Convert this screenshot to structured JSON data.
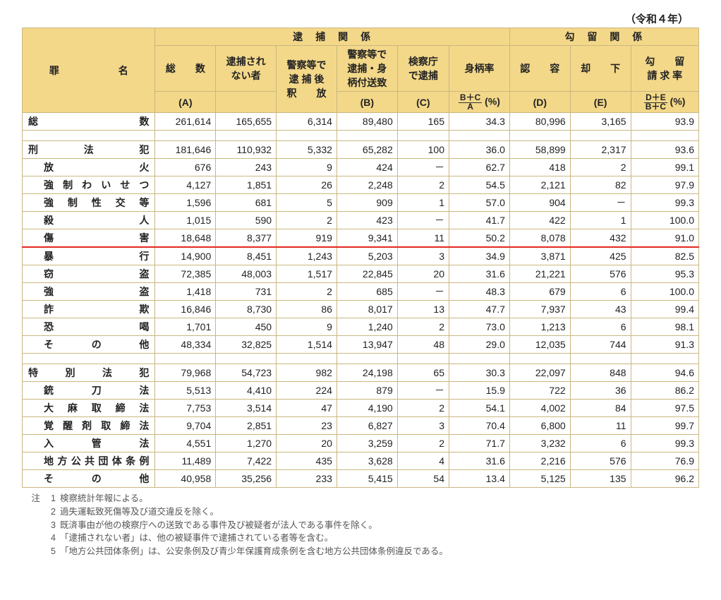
{
  "meta": {
    "year_label": "（令和４年）"
  },
  "header": {
    "group_arrest": "逮　捕　関　係",
    "group_detain": "勾　留　関　係",
    "rowname": "罪　　　　　　名",
    "colA": "総　　数",
    "colA_sub": "(A)",
    "col_not_arrested": "逮捕され\nない者",
    "col_release": "警察等で\n逮 捕 後\n釈　　放",
    "colB": "警察等で\n逮捕・身\n柄付送致",
    "colB_sub": "(B)",
    "colC": "検察庁\nで逮捕",
    "colC_sub": "(C)",
    "col_rate1": "身柄率",
    "col_rate1_formula_top": "B＋C",
    "col_rate1_formula_bot": "A",
    "col_rate1_pct": "(%)",
    "colD": "認　　容",
    "colD_sub": "(D)",
    "colE": "却　　下",
    "colE_sub": "(E)",
    "col_rate2": "勾　　留\n請 求 率",
    "col_rate2_formula_top": "D＋E",
    "col_rate2_formula_bot": "B＋C",
    "col_rate2_pct": "(%)"
  },
  "rows": [
    {
      "label": "総　　　　　　　　数",
      "bold": true,
      "indent": 0,
      "A": "261,614",
      "na": "165,655",
      "rel": "6,314",
      "B": "89,480",
      "C": "165",
      "r1": "34.3",
      "D": "80,996",
      "E": "3,165",
      "r2": "93.9",
      "after_spacer": true
    },
    {
      "label": "刑　　　法　　　犯",
      "bold": true,
      "indent": 0,
      "A": "181,646",
      "na": "110,932",
      "rel": "5,332",
      "B": "65,282",
      "C": "100",
      "r1": "36.0",
      "D": "58,899",
      "E": "2,317",
      "r2": "93.6"
    },
    {
      "label": "放　　　　　　　火",
      "indent": 1,
      "A": "676",
      "na": "243",
      "rel": "9",
      "B": "424",
      "C": "－",
      "r1": "62.7",
      "D": "418",
      "E": "2",
      "r2": "99.1"
    },
    {
      "label": "強 制 わ い せ つ",
      "indent": 1,
      "A": "4,127",
      "na": "1,851",
      "rel": "26",
      "B": "2,248",
      "C": "2",
      "r1": "54.5",
      "D": "2,121",
      "E": "82",
      "r2": "97.9"
    },
    {
      "label": "強　制　性　交　等",
      "indent": 1,
      "A": "1,596",
      "na": "681",
      "rel": "5",
      "B": "909",
      "C": "1",
      "r1": "57.0",
      "D": "904",
      "E": "－",
      "r2": "99.3"
    },
    {
      "label": "殺　　　　　　　人",
      "indent": 1,
      "A": "1,015",
      "na": "590",
      "rel": "2",
      "B": "423",
      "C": "－",
      "r1": "41.7",
      "D": "422",
      "E": "1",
      "r2": "100.0"
    },
    {
      "label": "傷　　　　　　　害",
      "indent": 1,
      "A": "18,648",
      "na": "8,377",
      "rel": "919",
      "B": "9,341",
      "C": "11",
      "r1": "50.2",
      "D": "8,078",
      "E": "432",
      "r2": "91.0",
      "redline": true
    },
    {
      "label": "暴　　　　　　　行",
      "indent": 1,
      "A": "14,900",
      "na": "8,451",
      "rel": "1,243",
      "B": "5,203",
      "C": "3",
      "r1": "34.9",
      "D": "3,871",
      "E": "425",
      "r2": "82.5"
    },
    {
      "label": "窃　　　　　　　盗",
      "indent": 1,
      "A": "72,385",
      "na": "48,003",
      "rel": "1,517",
      "B": "22,845",
      "C": "20",
      "r1": "31.6",
      "D": "21,221",
      "E": "576",
      "r2": "95.3"
    },
    {
      "label": "強　　　　　　　盗",
      "indent": 1,
      "A": "1,418",
      "na": "731",
      "rel": "2",
      "B": "685",
      "C": "－",
      "r1": "48.3",
      "D": "679",
      "E": "6",
      "r2": "100.0"
    },
    {
      "label": "詐　　　　　　　欺",
      "indent": 1,
      "A": "16,846",
      "na": "8,730",
      "rel": "86",
      "B": "8,017",
      "C": "13",
      "r1": "47.7",
      "D": "7,937",
      "E": "43",
      "r2": "99.4"
    },
    {
      "label": "恐　　　　　　　喝",
      "indent": 1,
      "A": "1,701",
      "na": "450",
      "rel": "9",
      "B": "1,240",
      "C": "2",
      "r1": "73.0",
      "D": "1,213",
      "E": "6",
      "r2": "98.1"
    },
    {
      "label": "そ　　　の　　　他",
      "indent": 1,
      "A": "48,334",
      "na": "32,825",
      "rel": "1,514",
      "B": "13,947",
      "C": "48",
      "r1": "29.0",
      "D": "12,035",
      "E": "744",
      "r2": "91.3",
      "after_spacer": true
    },
    {
      "label": "特　　別　　法　　犯",
      "bold": true,
      "indent": 0,
      "A": "79,968",
      "na": "54,723",
      "rel": "982",
      "B": "24,198",
      "C": "65",
      "r1": "30.3",
      "D": "22,097",
      "E": "848",
      "r2": "94.6"
    },
    {
      "label": "銃　　　刀　　　法",
      "indent": 1,
      "A": "5,513",
      "na": "4,410",
      "rel": "224",
      "B": "879",
      "C": "－",
      "r1": "15.9",
      "D": "722",
      "E": "36",
      "r2": "86.2"
    },
    {
      "label": "大　麻　取　締　法",
      "indent": 1,
      "A": "7,753",
      "na": "3,514",
      "rel": "47",
      "B": "4,190",
      "C": "2",
      "r1": "54.1",
      "D": "4,002",
      "E": "84",
      "r2": "97.5"
    },
    {
      "label": "覚 醒 剤 取 締 法",
      "indent": 1,
      "A": "9,704",
      "na": "2,851",
      "rel": "23",
      "B": "6,827",
      "C": "3",
      "r1": "70.4",
      "D": "6,800",
      "E": "11",
      "r2": "99.7"
    },
    {
      "label": "入　　　管　　　法",
      "indent": 1,
      "A": "4,551",
      "na": "1,270",
      "rel": "20",
      "B": "3,259",
      "C": "2",
      "r1": "71.7",
      "D": "3,232",
      "E": "6",
      "r2": "99.3"
    },
    {
      "label": "地方公共団体条例",
      "indent": 1,
      "A": "11,489",
      "na": "7,422",
      "rel": "435",
      "B": "3,628",
      "C": "4",
      "r1": "31.6",
      "D": "2,216",
      "E": "576",
      "r2": "76.9"
    },
    {
      "label": "そ　　　の　　　他",
      "indent": 1,
      "A": "40,958",
      "na": "35,256",
      "rel": "233",
      "B": "5,415",
      "C": "54",
      "r1": "13.4",
      "D": "5,125",
      "E": "135",
      "r2": "96.2"
    }
  ],
  "notes": {
    "lead": "注",
    "items": [
      "検察統計年報による。",
      "過失運転致死傷等及び道交違反を除く。",
      "既済事由が他の検察庁への送致である事件及び被疑者が法人である事件を除く。",
      "「逮捕されない者」は、他の被疑事件で逮捕されている者等を含む。",
      "「地方公共団体条例」は、公安条例及び青少年保護育成条例を含む地方公共団体条例違反である。"
    ]
  },
  "style": {
    "header_bg": "#f3d88a",
    "border_color": "#c9b780",
    "redline_color": "#e4281f"
  }
}
